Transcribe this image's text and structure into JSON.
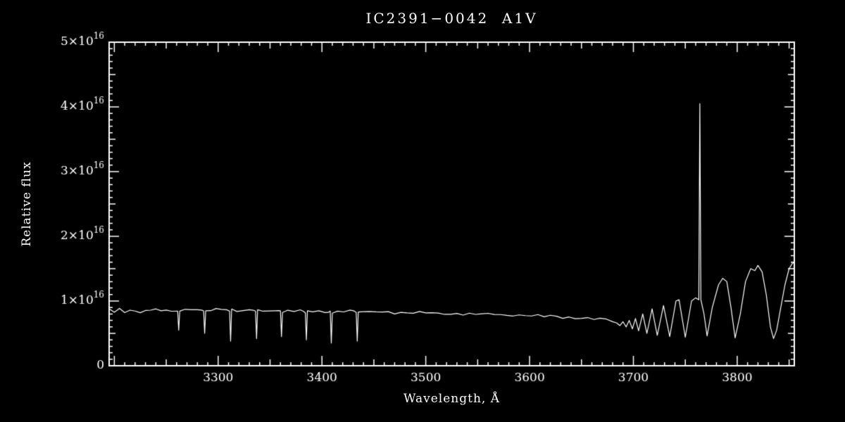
{
  "chart_data": {
    "type": "line",
    "title": "IC2391−0042  A1V",
    "xlabel": "Wavelength, Å",
    "ylabel": "Relative flux",
    "xlim": [
      3195,
      3855
    ],
    "ylim_1e16": [
      0,
      5
    ],
    "flux_unit": "relative flux in units of 10^16",
    "grid": false,
    "legend": "none",
    "colors": {
      "background": "#000000",
      "foreground": "#ffffff",
      "line": "#ffffff"
    },
    "x_ticks": [
      3300,
      3400,
      3500,
      3600,
      3700,
      3800
    ],
    "y_ticks": [
      {
        "value": 0,
        "base": "0",
        "exp": ""
      },
      {
        "value": 1,
        "base": "1×10",
        "exp": "16"
      },
      {
        "value": 2,
        "base": "2×10",
        "exp": "16"
      },
      {
        "value": 3,
        "base": "3×10",
        "exp": "16"
      },
      {
        "value": 4,
        "base": "4×10",
        "exp": "16"
      },
      {
        "value": 5,
        "base": "5×10",
        "exp": "16"
      }
    ],
    "features": {
      "absorption_lines_A": [
        3262,
        3287,
        3312,
        3337,
        3361,
        3385,
        3409,
        3434
      ],
      "balmer_series_minima_A": [
        3687,
        3693,
        3699,
        3705,
        3713,
        3723,
        3735,
        3750,
        3771,
        3798,
        3835
      ],
      "narrow_spike": {
        "wavelength_A": 3764,
        "flux_1e16": 4.05
      },
      "continuum_level_1e16": 0.85
    },
    "series": [
      {
        "name": "spectrum",
        "points_wavelength_flux1e16": [
          [
            3195,
            0.88
          ],
          [
            3200,
            0.84
          ],
          [
            3205,
            0.87
          ],
          [
            3210,
            0.83
          ],
          [
            3215,
            0.86
          ],
          [
            3220,
            0.84
          ],
          [
            3225,
            0.82
          ],
          [
            3230,
            0.86
          ],
          [
            3235,
            0.85
          ],
          [
            3240,
            0.88
          ],
          [
            3245,
            0.86
          ],
          [
            3250,
            0.84
          ],
          [
            3255,
            0.86
          ],
          [
            3258,
            0.85
          ],
          [
            3261,
            0.84
          ],
          [
            3262,
            0.55
          ],
          [
            3263,
            0.85
          ],
          [
            3268,
            0.86
          ],
          [
            3275,
            0.85
          ],
          [
            3280,
            0.87
          ],
          [
            3284,
            0.86
          ],
          [
            3286,
            0.85
          ],
          [
            3287,
            0.5
          ],
          [
            3288,
            0.85
          ],
          [
            3293,
            0.86
          ],
          [
            3298,
            0.87
          ],
          [
            3303,
            0.88
          ],
          [
            3308,
            0.87
          ],
          [
            3311,
            0.86
          ],
          [
            3312,
            0.38
          ],
          [
            3313,
            0.86
          ],
          [
            3318,
            0.86
          ],
          [
            3324,
            0.85
          ],
          [
            3330,
            0.87
          ],
          [
            3334,
            0.86
          ],
          [
            3336,
            0.85
          ],
          [
            3337,
            0.42
          ],
          [
            3338,
            0.85
          ],
          [
            3343,
            0.85
          ],
          [
            3349,
            0.84
          ],
          [
            3355,
            0.86
          ],
          [
            3358,
            0.85
          ],
          [
            3360,
            0.84
          ],
          [
            3361,
            0.45
          ],
          [
            3362,
            0.84
          ],
          [
            3367,
            0.85
          ],
          [
            3373,
            0.84
          ],
          [
            3379,
            0.85
          ],
          [
            3382,
            0.84
          ],
          [
            3384,
            0.83
          ],
          [
            3385,
            0.4
          ],
          [
            3386,
            0.83
          ],
          [
            3391,
            0.84
          ],
          [
            3397,
            0.85
          ],
          [
            3403,
            0.84
          ],
          [
            3406,
            0.83
          ],
          [
            3408,
            0.83
          ],
          [
            3409,
            0.35
          ],
          [
            3410,
            0.83
          ],
          [
            3415,
            0.84
          ],
          [
            3421,
            0.83
          ],
          [
            3427,
            0.84
          ],
          [
            3431,
            0.83
          ],
          [
            3433,
            0.83
          ],
          [
            3434,
            0.38
          ],
          [
            3435,
            0.83
          ],
          [
            3440,
            0.84
          ],
          [
            3446,
            0.82
          ],
          [
            3452,
            0.83
          ],
          [
            3458,
            0.84
          ],
          [
            3464,
            0.83
          ],
          [
            3470,
            0.82
          ],
          [
            3476,
            0.83
          ],
          [
            3482,
            0.81
          ],
          [
            3488,
            0.82
          ],
          [
            3494,
            0.82
          ],
          [
            3500,
            0.81
          ],
          [
            3506,
            0.82
          ],
          [
            3512,
            0.8
          ],
          [
            3518,
            0.81
          ],
          [
            3524,
            0.8
          ],
          [
            3530,
            0.81
          ],
          [
            3536,
            0.8
          ],
          [
            3542,
            0.8
          ],
          [
            3548,
            0.79
          ],
          [
            3554,
            0.8
          ],
          [
            3560,
            0.79
          ],
          [
            3566,
            0.8
          ],
          [
            3572,
            0.79
          ],
          [
            3578,
            0.78
          ],
          [
            3584,
            0.79
          ],
          [
            3590,
            0.78
          ],
          [
            3596,
            0.78
          ],
          [
            3602,
            0.77
          ],
          [
            3608,
            0.77
          ],
          [
            3614,
            0.76
          ],
          [
            3620,
            0.77
          ],
          [
            3626,
            0.76
          ],
          [
            3632,
            0.75
          ],
          [
            3638,
            0.75
          ],
          [
            3644,
            0.74
          ],
          [
            3650,
            0.74
          ],
          [
            3656,
            0.73
          ],
          [
            3662,
            0.72
          ],
          [
            3668,
            0.72
          ],
          [
            3674,
            0.71
          ],
          [
            3680,
            0.69
          ],
          [
            3684,
            0.66
          ],
          [
            3687,
            0.62
          ],
          [
            3690,
            0.68
          ],
          [
            3693,
            0.6
          ],
          [
            3696,
            0.7
          ],
          [
            3699,
            0.57
          ],
          [
            3702,
            0.73
          ],
          [
            3705,
            0.54
          ],
          [
            3709,
            0.8
          ],
          [
            3713,
            0.5
          ],
          [
            3718,
            0.88
          ],
          [
            3723,
            0.47
          ],
          [
            3729,
            0.93
          ],
          [
            3735,
            0.45
          ],
          [
            3741,
            1.0
          ],
          [
            3744,
            1.02
          ],
          [
            3750,
            0.44
          ],
          [
            3756,
            1.0
          ],
          [
            3760,
            1.05
          ],
          [
            3763,
            1.02
          ],
          [
            3764,
            4.05
          ],
          [
            3765,
            1.02
          ],
          [
            3768,
            0.8
          ],
          [
            3771,
            0.46
          ],
          [
            3776,
            0.9
          ],
          [
            3782,
            1.25
          ],
          [
            3786,
            1.35
          ],
          [
            3790,
            1.3
          ],
          [
            3794,
            0.9
          ],
          [
            3798,
            0.43
          ],
          [
            3803,
            0.8
          ],
          [
            3808,
            1.3
          ],
          [
            3813,
            1.5
          ],
          [
            3817,
            1.47
          ],
          [
            3820,
            1.55
          ],
          [
            3824,
            1.45
          ],
          [
            3828,
            1.1
          ],
          [
            3832,
            0.6
          ],
          [
            3835,
            0.42
          ],
          [
            3838,
            0.55
          ],
          [
            3842,
            0.9
          ],
          [
            3846,
            1.25
          ],
          [
            3850,
            1.5
          ],
          [
            3853,
            1.58
          ],
          [
            3855,
            1.6
          ]
        ]
      }
    ]
  }
}
